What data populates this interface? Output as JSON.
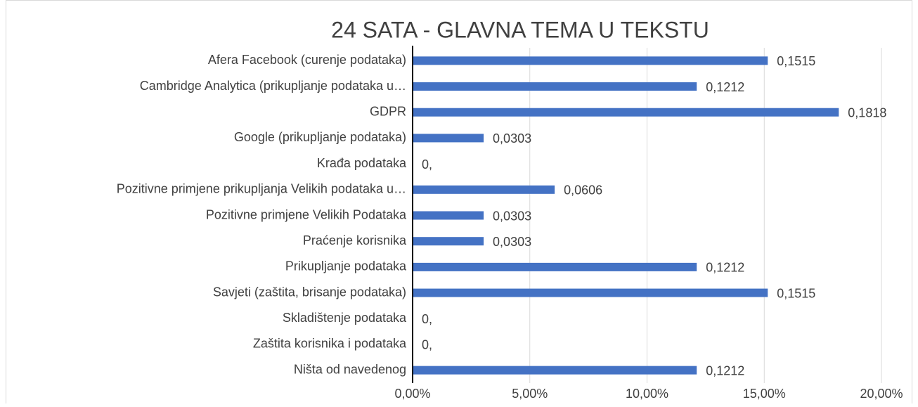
{
  "chart_data": {
    "type": "bar",
    "orientation": "horizontal",
    "title": "24 SATA - GLAVNA TEMA U TEKSTU",
    "categories": [
      "Afera Facebook (curenje podataka)",
      "Cambridge Analytica (prikupljanje podataka u…",
      "GDPR",
      "Google (prikupljanje podataka)",
      "Krađa podataka",
      "Pozitivne primjene prikupljanja Velikih podataka u…",
      "Pozitivne primjene Velikih Podataka",
      "Praćenje korisnika",
      "Prikupljanje podataka",
      "Savjeti (zaštita, brisanje podataka)",
      "Skladištenje podataka",
      "Zaštita korisnika i podataka",
      "Ništa od navedenog"
    ],
    "values": [
      0.1515,
      0.1212,
      0.1818,
      0.0303,
      0,
      0.0606,
      0.0303,
      0.0303,
      0.1212,
      0.1515,
      0,
      0,
      0.1212
    ],
    "value_labels": [
      "0,1515",
      "0,1212",
      "0,1818",
      "0,0303",
      "0,",
      "0,0606",
      "0,0303",
      "0,0303",
      "0,1212",
      "0,1515",
      "0,",
      "0,",
      "0,1212"
    ],
    "color": "#4472c4",
    "xlim": [
      0,
      0.2
    ],
    "xticks": [
      {
        "value": 0,
        "label": "0,00%"
      },
      {
        "value": 0.05,
        "label": "5,00%"
      },
      {
        "value": 0.1,
        "label": "10,00%"
      },
      {
        "value": 0.15,
        "label": "15,00%"
      },
      {
        "value": 0.2,
        "label": "20,00%"
      }
    ],
    "grid": true
  }
}
